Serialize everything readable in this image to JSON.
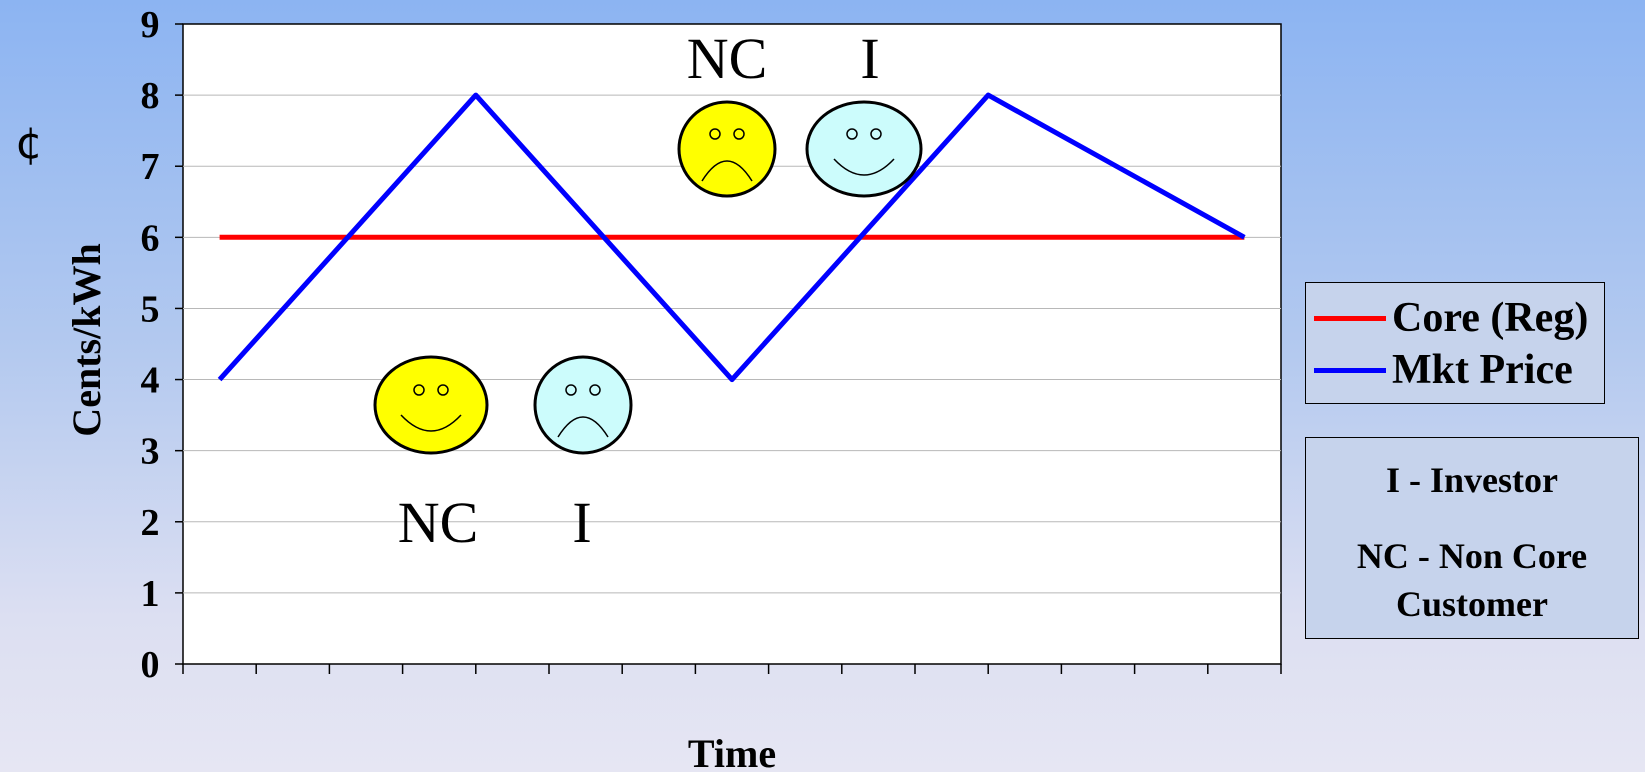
{
  "chart_data": {
    "type": "line",
    "ylabel": "Cents/kWh",
    "xlabel": "Time",
    "ylim": [
      0,
      9
    ],
    "yticks": [
      "0",
      "1",
      "2",
      "3",
      "4",
      "5",
      "6",
      "7",
      "8",
      "9"
    ],
    "x_tick_count": 15,
    "grid": "horizontal",
    "legend_position": "right",
    "series": [
      {
        "name": "Core (Reg)",
        "color": "#ff0000",
        "values": [
          6,
          6
        ]
      },
      {
        "name": "Mkt Price",
        "color": "#0000ff",
        "values": [
          4,
          8,
          4,
          8,
          6
        ]
      }
    ]
  },
  "currency_symbol": "¢",
  "annotations": {
    "top": {
      "left_label": "NC",
      "right_label": "I",
      "left_face": "sad",
      "right_face": "happy"
    },
    "bottom": {
      "left_label": "NC",
      "right_label": "I",
      "left_face": "happy",
      "right_face": "sad"
    }
  },
  "notes": {
    "line1": "I - Investor",
    "line2": "NC - Non Core Customer"
  },
  "colors": {
    "yellow_face": "#ffff00",
    "cyan_face": "#ccfcfc",
    "plot_bg": "#ffffff"
  }
}
